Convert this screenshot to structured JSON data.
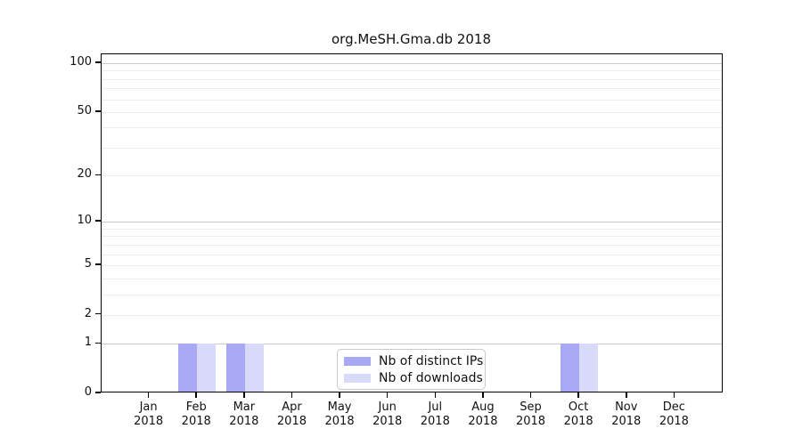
{
  "chart_data": {
    "type": "bar",
    "title": "org.MeSH.Gma.db 2018",
    "categories": [
      "Jan",
      "Feb",
      "Mar",
      "Apr",
      "May",
      "Jun",
      "Jul",
      "Aug",
      "Sep",
      "Oct",
      "Nov",
      "Dec"
    ],
    "x_year_label": "2018",
    "series": [
      {
        "name": "Nb of distinct IPs",
        "color": "#a8a8f5",
        "values": [
          0,
          1,
          1,
          0,
          0,
          0,
          0,
          0,
          0,
          1,
          0,
          0
        ]
      },
      {
        "name": "Nb of downloads",
        "color": "#d9d9f9",
        "values": [
          0,
          1,
          1,
          0,
          0,
          0,
          0,
          0,
          0,
          1,
          0,
          0
        ]
      }
    ],
    "y_axis": {
      "scale": "log1p",
      "tick_values": [
        0,
        1,
        2,
        5,
        10,
        20,
        50,
        100
      ],
      "tick_labels": [
        "0",
        "1",
        "2",
        "5",
        "10",
        "20",
        "50",
        "100"
      ],
      "major_gridlines": [
        1,
        10,
        100
      ],
      "minor_gridlines": [
        2,
        3,
        4,
        5,
        6,
        7,
        8,
        9,
        20,
        30,
        40,
        50,
        60,
        70,
        80,
        90
      ],
      "ylim": [
        0,
        114
      ]
    },
    "grid": "horizontal",
    "legend_position": "bottom-center",
    "colors": {
      "axis": "#000000",
      "grid_major": "#c9c9c9",
      "grid_minor": "#ececec",
      "legend_border": "#c9c9c9"
    }
  }
}
